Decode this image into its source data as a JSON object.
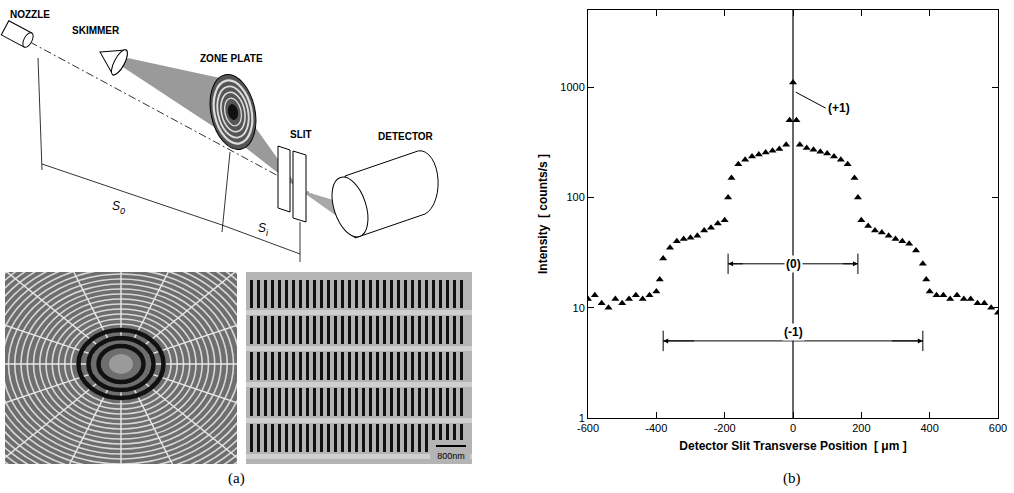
{
  "panels": {
    "a": "(a)",
    "b": "(b)"
  },
  "diagram": {
    "labels": {
      "nozzle": "NOZZLE",
      "skimmer": "SKIMMER",
      "zone_plate": "ZONE PLATE",
      "slit": "SLIT",
      "detector": "DETECTOR"
    },
    "distances": [
      {
        "symbol": "S",
        "subscript": "0"
      },
      {
        "symbol": "S",
        "subscript": "i"
      }
    ],
    "scale_bar": "800nm"
  },
  "chart_data": {
    "type": "scatter",
    "marker": "triangle-up",
    "color": "#000000",
    "log": "y",
    "grid": false,
    "x_label": "Detector Slit Transverse Position  [ μm ]",
    "y_label": "Intensity  [ counts/s ]",
    "x": [
      -600,
      -580,
      -560,
      -540,
      -520,
      -500,
      -480,
      -460,
      -440,
      -420,
      -400,
      -390,
      -380,
      -360,
      -340,
      -320,
      -300,
      -280,
      -260,
      -240,
      -220,
      -200,
      -190,
      -180,
      -160,
      -140,
      -120,
      -100,
      -80,
      -60,
      -40,
      -20,
      -10,
      0,
      10,
      20,
      40,
      60,
      80,
      100,
      120,
      140,
      160,
      180,
      190,
      200,
      220,
      240,
      260,
      280,
      300,
      320,
      340,
      360,
      380,
      390,
      400,
      420,
      440,
      460,
      480,
      500,
      520,
      540,
      560,
      580,
      600
    ],
    "values": [
      12,
      13,
      11,
      10,
      12,
      11,
      12,
      13,
      12,
      13,
      14,
      18,
      28,
      35,
      40,
      42,
      43,
      45,
      50,
      53,
      58,
      62,
      100,
      150,
      200,
      220,
      235,
      245,
      255,
      265,
      275,
      300,
      500,
      1100,
      500,
      300,
      280,
      270,
      260,
      250,
      235,
      220,
      200,
      150,
      100,
      62,
      55,
      50,
      48,
      45,
      42,
      40,
      38,
      33,
      25,
      18,
      14,
      13,
      13,
      12,
      13,
      12,
      12,
      11,
      11,
      10,
      9
    ],
    "xlim": [
      -600,
      600
    ],
    "xticks": [
      -600,
      -400,
      -200,
      0,
      200,
      400,
      600
    ],
    "ylim": [
      1,
      5000
    ],
    "yticks": [
      1,
      10,
      100,
      1000
    ],
    "vline": 0,
    "annotations": [
      {
        "text": "(+1)",
        "x": 8,
        "y": 900
      },
      {
        "text": "(0)",
        "x": [
          -190,
          190
        ],
        "y": 25
      },
      {
        "text": "(-1)",
        "x": [
          -380,
          380
        ],
        "y": 5
      }
    ]
  }
}
